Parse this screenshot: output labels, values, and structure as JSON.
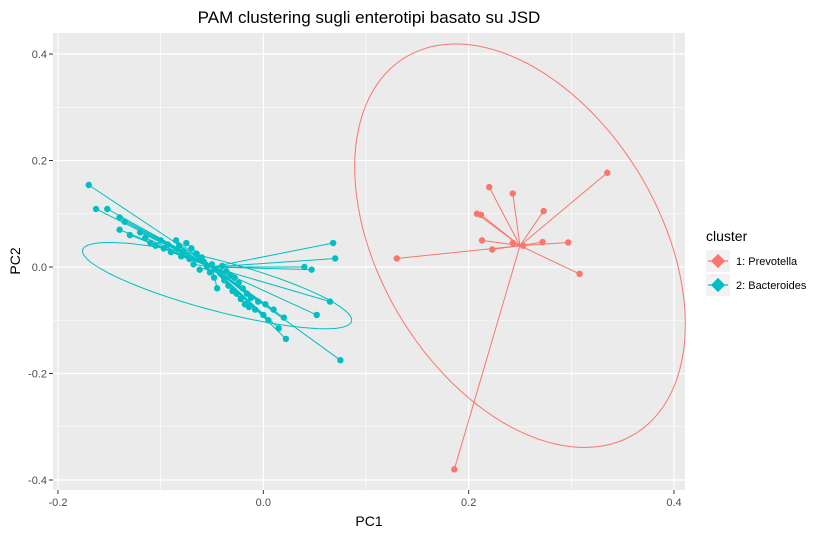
{
  "chart_data": {
    "type": "scatter",
    "title": "PAM clustering sugli enterotipi basato su JSD",
    "xlabel": "PC1",
    "ylabel": "PC2",
    "xlim": [
      -0.2,
      0.4
    ],
    "ylim": [
      -0.4,
      0.4
    ],
    "x_ticks": [
      -0.2,
      0.0,
      0.2,
      0.4
    ],
    "x_tick_labels": [
      "-0.2",
      "0.0",
      "0.2",
      "0.4"
    ],
    "y_ticks": [
      -0.4,
      -0.2,
      0.0,
      0.2,
      0.4
    ],
    "y_tick_labels": [
      "-0.4",
      "-0.2",
      "0.0",
      "0.2",
      "0.4"
    ],
    "grid": true,
    "legend": {
      "title": "cluster",
      "placement": "right"
    },
    "series": [
      {
        "name": "1: Prevotella",
        "color": "#F8766D",
        "centroid": [
          0.25,
          0.04
        ],
        "ellipse": {
          "center": [
            0.25,
            0.04
          ],
          "semi_axis_1": 0.385,
          "semi_axis_2": 0.146,
          "angle_deg": -79
        },
        "points": [
          [
            0.13,
            0.016
          ],
          [
            0.186,
            -0.38
          ],
          [
            0.208,
            0.1
          ],
          [
            0.212,
            0.098
          ],
          [
            0.213,
            0.05
          ],
          [
            0.22,
            0.15
          ],
          [
            0.223,
            0.033
          ],
          [
            0.243,
            0.138
          ],
          [
            0.243,
            0.045
          ],
          [
            0.253,
            0.04
          ],
          [
            0.273,
            0.105
          ],
          [
            0.272,
            0.047
          ],
          [
            0.297,
            0.046
          ],
          [
            0.308,
            -0.013
          ],
          [
            0.335,
            0.177
          ]
        ]
      },
      {
        "name": "2: Bacteroides",
        "color": "#00BFC4",
        "centroid": [
          -0.05,
          0.0
        ],
        "ellipse": {
          "center": [
            -0.045,
            -0.035
          ],
          "semi_axis_1": 0.148,
          "semi_axis_2": 0.043,
          "angle_deg": -29
        },
        "points": [
          [
            -0.17,
            0.154
          ],
          [
            -0.163,
            0.109
          ],
          [
            -0.152,
            0.109
          ],
          [
            -0.14,
            0.093
          ],
          [
            -0.14,
            0.07
          ],
          [
            -0.135,
            0.085
          ],
          [
            -0.13,
            0.06
          ],
          [
            -0.12,
            0.065
          ],
          [
            -0.115,
            0.055
          ],
          [
            -0.11,
            0.045
          ],
          [
            -0.105,
            0.04
          ],
          [
            -0.1,
            0.05
          ],
          [
            -0.097,
            0.035
          ],
          [
            -0.093,
            0.042
          ],
          [
            -0.09,
            0.028
          ],
          [
            -0.085,
            0.05
          ],
          [
            -0.082,
            0.04
          ],
          [
            -0.08,
            0.02
          ],
          [
            -0.078,
            0.03
          ],
          [
            -0.075,
            0.045
          ],
          [
            -0.072,
            0.015
          ],
          [
            -0.07,
            0.035
          ],
          [
            -0.068,
            0.005
          ],
          [
            -0.065,
            0.025
          ],
          [
            -0.062,
            -0.005
          ],
          [
            -0.06,
            0.018
          ],
          [
            -0.058,
            0.01
          ],
          [
            -0.055,
            0.0
          ],
          [
            -0.052,
            -0.01
          ],
          [
            -0.05,
            0.005
          ],
          [
            -0.048,
            -0.02
          ],
          [
            -0.046,
            -0.005
          ],
          [
            -0.045,
            -0.04
          ],
          [
            -0.042,
            -0.012
          ],
          [
            -0.04,
            0.002
          ],
          [
            -0.038,
            -0.025
          ],
          [
            -0.036,
            -0.008
          ],
          [
            -0.034,
            -0.035
          ],
          [
            -0.032,
            -0.015
          ],
          [
            -0.03,
            -0.045
          ],
          [
            -0.028,
            -0.02
          ],
          [
            -0.026,
            -0.05
          ],
          [
            -0.024,
            -0.03
          ],
          [
            -0.022,
            -0.06
          ],
          [
            -0.02,
            -0.04
          ],
          [
            -0.018,
            -0.07
          ],
          [
            -0.016,
            -0.05
          ],
          [
            -0.014,
            -0.075
          ],
          [
            -0.012,
            -0.058
          ],
          [
            -0.008,
            -0.08
          ],
          [
            -0.005,
            -0.065
          ],
          [
            0.0,
            -0.09
          ],
          [
            0.002,
            -0.07
          ],
          [
            0.005,
            -0.1
          ],
          [
            0.01,
            -0.08
          ],
          [
            0.015,
            -0.115
          ],
          [
            0.02,
            -0.095
          ],
          [
            0.022,
            -0.135
          ],
          [
            0.04,
            0.0
          ],
          [
            0.047,
            -0.005
          ],
          [
            0.052,
            -0.09
          ],
          [
            0.065,
            -0.065
          ],
          [
            0.068,
            0.045
          ],
          [
            0.07,
            0.016
          ],
          [
            0.075,
            -0.175
          ]
        ]
      }
    ]
  }
}
